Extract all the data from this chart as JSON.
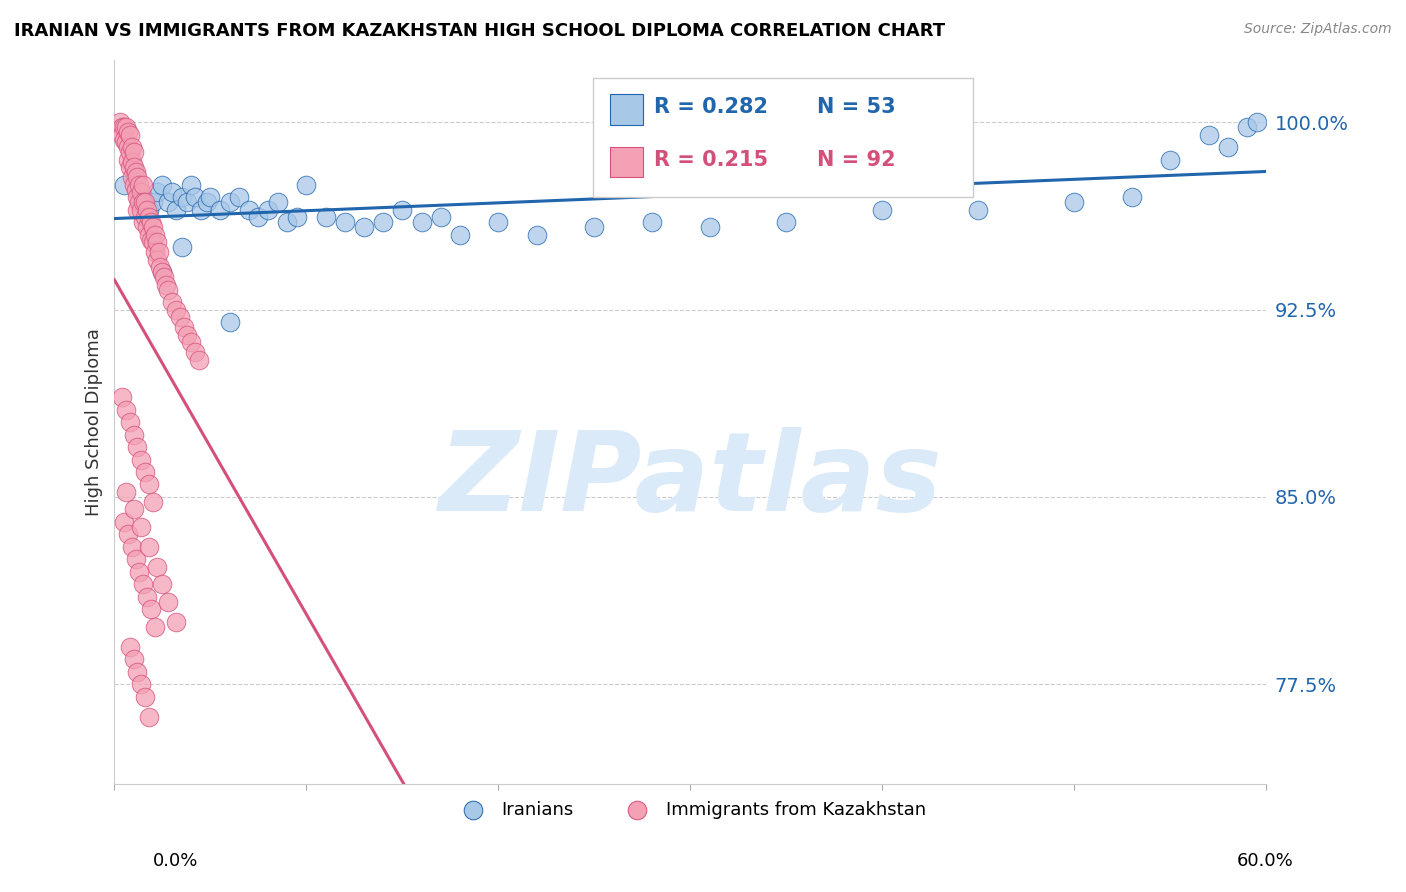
{
  "title": "IRANIAN VS IMMIGRANTS FROM KAZAKHSTAN HIGH SCHOOL DIPLOMA CORRELATION CHART",
  "source": "Source: ZipAtlas.com",
  "ylabel": "High School Diploma",
  "ytick_labels": [
    "100.0%",
    "92.5%",
    "85.0%",
    "77.5%"
  ],
  "ytick_values": [
    1.0,
    0.925,
    0.85,
    0.775
  ],
  "xmin": 0.0,
  "xmax": 0.6,
  "ymin": 0.735,
  "ymax": 1.025,
  "legend_label1": "Iranians",
  "legend_label2": "Immigrants from Kazakhstan",
  "color_blue": "#a8c8e8",
  "color_pink": "#f4a0b5",
  "trendline_blue": "#2166ac",
  "trendline_pink": "#d4507a",
  "watermark_text": "ZIPatlas",
  "watermark_color": "#daeaf8",
  "blue_x": [
    0.005,
    0.01,
    0.015,
    0.018,
    0.02,
    0.022,
    0.025,
    0.028,
    0.03,
    0.032,
    0.035,
    0.038,
    0.04,
    0.042,
    0.045,
    0.048,
    0.05,
    0.055,
    0.06,
    0.065,
    0.07,
    0.075,
    0.08,
    0.085,
    0.09,
    0.095,
    0.1,
    0.11,
    0.12,
    0.13,
    0.14,
    0.15,
    0.16,
    0.17,
    0.18,
    0.2,
    0.22,
    0.25,
    0.28,
    0.31,
    0.35,
    0.4,
    0.45,
    0.5,
    0.53,
    0.55,
    0.57,
    0.58,
    0.59,
    0.595,
    0.025,
    0.035,
    0.06
  ],
  "blue_y": [
    0.975,
    0.98,
    0.97,
    0.965,
    0.968,
    0.972,
    0.975,
    0.968,
    0.972,
    0.965,
    0.97,
    0.968,
    0.975,
    0.97,
    0.965,
    0.968,
    0.97,
    0.965,
    0.968,
    0.97,
    0.965,
    0.962,
    0.965,
    0.968,
    0.96,
    0.962,
    0.975,
    0.962,
    0.96,
    0.958,
    0.96,
    0.965,
    0.96,
    0.962,
    0.955,
    0.96,
    0.955,
    0.958,
    0.96,
    0.958,
    0.96,
    0.965,
    0.965,
    0.968,
    0.97,
    0.985,
    0.995,
    0.99,
    0.998,
    1.0,
    0.94,
    0.95,
    0.92
  ],
  "pink_x": [
    0.003,
    0.004,
    0.004,
    0.005,
    0.005,
    0.006,
    0.006,
    0.007,
    0.007,
    0.007,
    0.008,
    0.008,
    0.008,
    0.009,
    0.009,
    0.009,
    0.01,
    0.01,
    0.01,
    0.011,
    0.011,
    0.012,
    0.012,
    0.012,
    0.013,
    0.013,
    0.014,
    0.014,
    0.015,
    0.015,
    0.015,
    0.016,
    0.016,
    0.017,
    0.017,
    0.018,
    0.018,
    0.019,
    0.019,
    0.02,
    0.02,
    0.021,
    0.021,
    0.022,
    0.022,
    0.023,
    0.024,
    0.025,
    0.026,
    0.027,
    0.028,
    0.03,
    0.032,
    0.034,
    0.036,
    0.038,
    0.04,
    0.042,
    0.044,
    0.004,
    0.006,
    0.008,
    0.01,
    0.012,
    0.014,
    0.016,
    0.018,
    0.02,
    0.005,
    0.007,
    0.009,
    0.011,
    0.013,
    0.015,
    0.017,
    0.019,
    0.021,
    0.008,
    0.01,
    0.012,
    0.014,
    0.016,
    0.018,
    0.006,
    0.01,
    0.014,
    0.018,
    0.022,
    0.025,
    0.028,
    0.032
  ],
  "pink_y": [
    1.0,
    0.998,
    0.995,
    0.998,
    0.993,
    0.998,
    0.992,
    0.996,
    0.99,
    0.985,
    0.995,
    0.988,
    0.982,
    0.99,
    0.984,
    0.978,
    0.988,
    0.982,
    0.975,
    0.98,
    0.973,
    0.978,
    0.97,
    0.965,
    0.975,
    0.968,
    0.972,
    0.965,
    0.975,
    0.968,
    0.96,
    0.968,
    0.962,
    0.965,
    0.958,
    0.962,
    0.955,
    0.96,
    0.953,
    0.958,
    0.952,
    0.955,
    0.948,
    0.952,
    0.945,
    0.948,
    0.942,
    0.94,
    0.938,
    0.935,
    0.933,
    0.928,
    0.925,
    0.922,
    0.918,
    0.915,
    0.912,
    0.908,
    0.905,
    0.89,
    0.885,
    0.88,
    0.875,
    0.87,
    0.865,
    0.86,
    0.855,
    0.848,
    0.84,
    0.835,
    0.83,
    0.825,
    0.82,
    0.815,
    0.81,
    0.805,
    0.798,
    0.79,
    0.785,
    0.78,
    0.775,
    0.77,
    0.762,
    0.852,
    0.845,
    0.838,
    0.83,
    0.822,
    0.815,
    0.808,
    0.8
  ],
  "blue_trend_x": [
    0.0,
    0.6
  ],
  "blue_trend_y": [
    0.955,
    1.0
  ],
  "pink_trend_x": [
    0.0,
    0.048
  ],
  "pink_trend_y": [
    0.97,
    0.94
  ]
}
